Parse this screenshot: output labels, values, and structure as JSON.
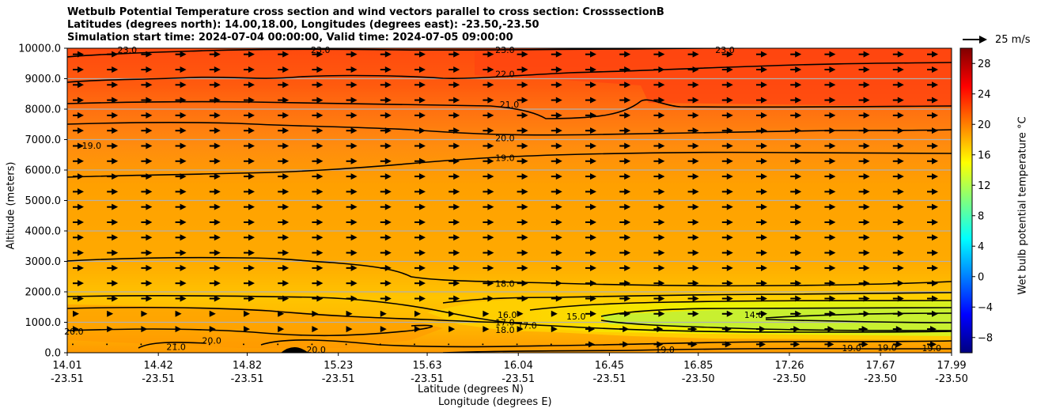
{
  "title": {
    "line1": "Wetbulb Potential Temperature cross section and wind vectors parallel to cross section: CrosssectionB",
    "line2": "Latitudes (degrees north): 14.00,18.00, Longitudes (degrees east): -23.50,-23.50",
    "line3": "Simulation start time: 2024-07-04 00:00:00, Valid time: 2024-07-05 09:00:00"
  },
  "chart_data": {
    "type": "heatmap",
    "subtype": "contour cross-section with wind vectors",
    "ylabel": "Altitude (meters)",
    "xlabel_lat": "Latitude (degrees N)",
    "xlabel_lon": "Longitude (degrees E)",
    "ylim": [
      0,
      10000
    ],
    "yticks": [
      "0.0",
      "1000.0",
      "2000.0",
      "3000.0",
      "4000.0",
      "5000.0",
      "6000.0",
      "7000.0",
      "8000.0",
      "9000.0",
      "10000.0"
    ],
    "xlim": [
      14.01,
      17.99
    ],
    "xticks": [
      {
        "lat": "14.01",
        "lon": "-23.51"
      },
      {
        "lat": "14.42",
        "lon": "-23.51"
      },
      {
        "lat": "14.82",
        "lon": "-23.51"
      },
      {
        "lat": "15.23",
        "lon": "-23.51"
      },
      {
        "lat": "15.63",
        "lon": "-23.51"
      },
      {
        "lat": "16.04",
        "lon": "-23.51"
      },
      {
        "lat": "16.45",
        "lon": "-23.51"
      },
      {
        "lat": "16.85",
        "lon": "-23.50"
      },
      {
        "lat": "17.26",
        "lon": "-23.50"
      },
      {
        "lat": "17.67",
        "lon": "-23.50"
      },
      {
        "lat": "17.99",
        "lon": "-23.50"
      }
    ],
    "grid": "horizontal",
    "colorbar": {
      "label": "Wet bulb potential temperature $^\\circ$C",
      "range": [
        -10,
        30
      ],
      "ticks": [
        "−8",
        "−4",
        "0",
        "4",
        "8",
        "12",
        "16",
        "20",
        "24",
        "28"
      ],
      "colormap": "jet"
    },
    "quiver_key": "25 m/s",
    "contour_labels": [
      {
        "text": "23.0",
        "lat": 14.28,
        "alt": 9950
      },
      {
        "text": "23.0",
        "lat": 15.15,
        "alt": 9950
      },
      {
        "text": "23.0",
        "lat": 15.98,
        "alt": 9950
      },
      {
        "text": "23.0",
        "lat": 16.97,
        "alt": 9950
      },
      {
        "text": "22.0",
        "lat": 15.98,
        "alt": 9150
      },
      {
        "text": "21.0",
        "lat": 16.0,
        "alt": 8150
      },
      {
        "text": "20.0",
        "lat": 15.98,
        "alt": 7050
      },
      {
        "text": "19.0",
        "lat": 15.98,
        "alt": 6400
      },
      {
        "text": "19.0",
        "lat": 14.12,
        "alt": 6800
      },
      {
        "text": "18.0",
        "lat": 15.98,
        "alt": 2270
      },
      {
        "text": "17.0",
        "lat": 15.98,
        "alt": 1000
      },
      {
        "text": "16.0",
        "lat": 15.99,
        "alt": 1250
      },
      {
        "text": "17.0",
        "lat": 16.08,
        "alt": 900
      },
      {
        "text": "18.0",
        "lat": 15.98,
        "alt": 750
      },
      {
        "text": "15.0",
        "lat": 16.3,
        "alt": 1200
      },
      {
        "text": "14.0",
        "lat": 17.1,
        "alt": 1250
      },
      {
        "text": "20.0",
        "lat": 14.04,
        "alt": 700
      },
      {
        "text": "21.0",
        "lat": 14.5,
        "alt": 200
      },
      {
        "text": "20.0",
        "lat": 14.66,
        "alt": 400
      },
      {
        "text": "20.0",
        "lat": 15.13,
        "alt": 100
      },
      {
        "text": "19.0",
        "lat": 16.7,
        "alt": 100
      },
      {
        "text": "19.0",
        "lat": 17.54,
        "alt": 150
      },
      {
        "text": "19.0",
        "lat": 17.7,
        "alt": 170
      },
      {
        "text": "19.0",
        "lat": 17.9,
        "alt": 150
      }
    ]
  }
}
